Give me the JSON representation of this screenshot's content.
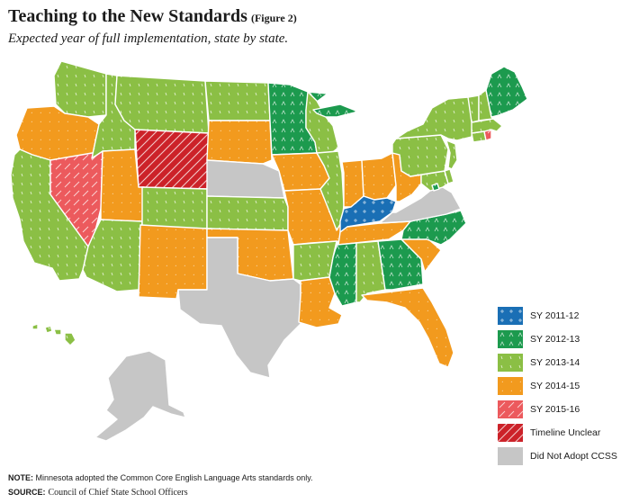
{
  "title": "Teaching to the New Standards",
  "figure_label": "(Figure 2)",
  "subtitle": "Expected year of full implementation, state by state.",
  "categories": [
    {
      "key": "sy1112",
      "label": "SY 2011-12",
      "color": "#1a6fb5",
      "mark": "+"
    },
    {
      "key": "sy1213",
      "label": "SY 2012-13",
      "color": "#1c9a4e",
      "mark": "^"
    },
    {
      "key": "sy1314",
      "label": "SY 2013-14",
      "color": "#8bbf45",
      "mark": "'"
    },
    {
      "key": "sy1415",
      "label": "SY 2014-15",
      "color": "#f29a1e",
      "mark": "."
    },
    {
      "key": "sy1516",
      "label": "SY 2015-16",
      "color": "#ec5a5d",
      "mark": "/"
    },
    {
      "key": "unclear",
      "label": "Timeline Unclear",
      "color": "#cc2229",
      "mark": "//"
    },
    {
      "key": "none",
      "label": "Did Not Adopt CCSS",
      "color": "#c6c6c6",
      "mark": ""
    }
  ],
  "states": {
    "WA": "sy1314",
    "OR": "sy1415",
    "CA": "sy1314",
    "NV": "sy1516",
    "ID": "sy1314",
    "MT": "sy1314",
    "WY": "unclear",
    "UT": "sy1415",
    "AZ": "sy1314",
    "CO": "sy1314",
    "NM": "sy1415",
    "ND": "sy1314",
    "SD": "sy1415",
    "NE": "none",
    "KS": "sy1314",
    "OK": "sy1415",
    "TX": "none",
    "MN": "sy1213",
    "IA": "sy1415",
    "MO": "sy1415",
    "AR": "sy1314",
    "LA": "sy1415",
    "WI": "sy1314",
    "IL": "sy1314",
    "MI": "sy1213",
    "IN": "sy1415",
    "OH": "sy1415",
    "KY": "sy1112",
    "TN": "sy1415",
    "MS": "sy1213",
    "AL": "sy1314",
    "GA": "sy1213",
    "FL": "sy1415",
    "SC": "sy1415",
    "NC": "sy1213",
    "VA": "none",
    "WV": "sy1415",
    "MD": "sy1314",
    "DE": "sy1314",
    "PA": "sy1314",
    "NJ": "sy1314",
    "NY": "sy1314",
    "CT": "sy1314",
    "RI": "sy1516",
    "MA": "sy1314",
    "VT": "sy1314",
    "NH": "sy1314",
    "ME": "sy1213",
    "AK": "none",
    "HI": "sy1314",
    "DC": "sy1213"
  },
  "note_label": "NOTE:",
  "note_text": "Minnesota adopted the Common Core English Language Arts standards only.",
  "source_label": "SOURCE:",
  "source_text": "Council of Chief State School Officers"
}
